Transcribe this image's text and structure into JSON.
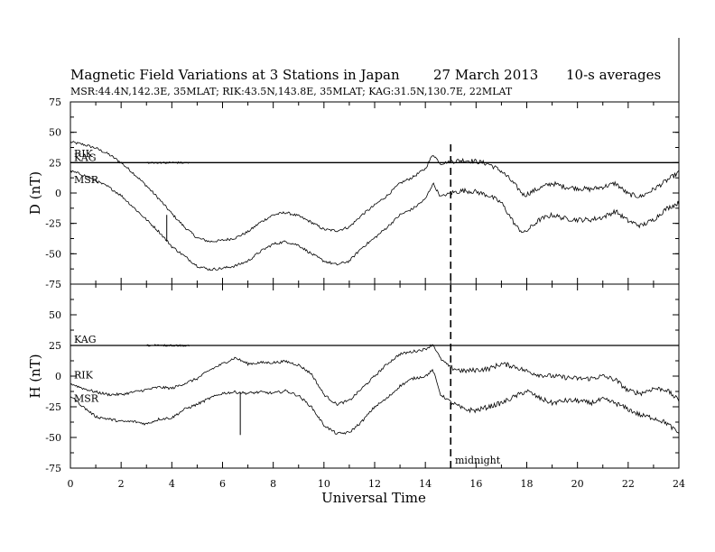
{
  "title": "Magnetic Field Variations at 3 Stations in Japan",
  "date": "27 March   2013",
  "averaging": "10-s averages",
  "subtitle": "MSR:44.4N,142.3E, 35MLAT;   RIK:43.5N,143.8E, 35MLAT;   KAG:31.5N,130.7E, 22MLAT",
  "chart_data": {
    "type": "line",
    "xlabel": "Universal Time",
    "xlim": [
      0,
      24
    ],
    "xticks": [
      0,
      2,
      4,
      6,
      8,
      10,
      12,
      14,
      16,
      18,
      20,
      22,
      24
    ],
    "grid": false,
    "annotation": {
      "x": 15,
      "label": "midnight",
      "style": "dashed"
    },
    "panels": [
      {
        "ylabel": "D (nT)",
        "ylim": [
          -75,
          75
        ],
        "yticks": [
          75,
          50,
          25,
          0,
          -25,
          -50,
          -75
        ],
        "series": [
          {
            "name": "RIK",
            "x": [
              0,
              0.5,
              1,
              1.5,
              2,
              2.5,
              3,
              3.5,
              4,
              4.5,
              5,
              5.5,
              6,
              6.5,
              7,
              7.5,
              8,
              8.5,
              9,
              9.5,
              10,
              10.5,
              11,
              11.5,
              12,
              12.5,
              13,
              13.5,
              14,
              14.3,
              14.6,
              15,
              15.5,
              16,
              16.5,
              17,
              17.3,
              17.6,
              17.9,
              18.5,
              19,
              19.5,
              20,
              20.5,
              21,
              21.5,
              22,
              22.5,
              23,
              23.5,
              24
            ],
            "y": [
              42,
              40,
              37,
              32,
              25,
              16,
              6,
              -5,
              -17,
              -28,
              -37,
              -40,
              -39,
              -37,
              -32,
              -24,
              -18,
              -16,
              -19,
              -24,
              -30,
              -31,
              -28,
              -18,
              -10,
              -2,
              8,
              13,
              20,
              32,
              24,
              26,
              27,
              26,
              24,
              18,
              12,
              5,
              -2,
              4,
              8,
              5,
              4,
              3,
              5,
              8,
              -1,
              -3,
              3,
              10,
              17
            ]
          },
          {
            "name": "KAG",
            "x": [
              0,
              24
            ],
            "y": [
              25,
              25
            ]
          },
          {
            "name": "MSR",
            "x": [
              0,
              0.5,
              1,
              1.5,
              2,
              2.5,
              3,
              3.5,
              4,
              4.5,
              5,
              5.5,
              6,
              6.5,
              7,
              7.5,
              8,
              8.5,
              9,
              9.5,
              10,
              10.5,
              11,
              11.5,
              12,
              12.5,
              13,
              13.5,
              14,
              14.3,
              14.6,
              15,
              15.5,
              16,
              16.5,
              17,
              17.3,
              17.6,
              17.9,
              18.5,
              19,
              19.5,
              20,
              20.5,
              21,
              21.5,
              22,
              22.5,
              23,
              23.5,
              24
            ],
            "y": [
              18,
              15,
              10,
              5,
              -2,
              -12,
              -22,
              -32,
              -44,
              -52,
              -60,
              -63,
              -62,
              -60,
              -56,
              -48,
              -42,
              -40,
              -43,
              -50,
              -56,
              -59,
              -56,
              -45,
              -37,
              -28,
              -18,
              -13,
              -5,
              8,
              -3,
              0,
              2,
              1,
              -2,
              -8,
              -18,
              -28,
              -33,
              -22,
              -18,
              -21,
              -22,
              -22,
              -20,
              -15,
              -23,
              -27,
              -22,
              -13,
              -8
            ]
          }
        ]
      },
      {
        "ylabel": "H (nT)",
        "ylim": [
          -75,
          75
        ],
        "yticks": [
          75,
          50,
          25,
          0,
          -25,
          -50,
          -75
        ],
        "series": [
          {
            "name": "KAG",
            "x": [
              0,
              24
            ],
            "y": [
              25,
              25
            ]
          },
          {
            "name": "RIK",
            "x": [
              0,
              0.5,
              1,
              1.5,
              2,
              2.5,
              3,
              3.5,
              4,
              4.5,
              5,
              5.5,
              6,
              6.5,
              7,
              7.5,
              8,
              8.5,
              9,
              9.5,
              10,
              10.5,
              11,
              11.5,
              12,
              12.5,
              13,
              13.5,
              14,
              14.3,
              14.6,
              15,
              15.5,
              16,
              16.5,
              17,
              17.5,
              18,
              18.5,
              19,
              19.5,
              20,
              20.5,
              21,
              21.5,
              22,
              22.5,
              23,
              23.5,
              24
            ],
            "y": [
              -6,
              -10,
              -13,
              -15,
              -15,
              -13,
              -11,
              -9,
              -10,
              -6,
              -2,
              5,
              10,
              15,
              10,
              11,
              11,
              12,
              9,
              2,
              -15,
              -23,
              -20,
              -10,
              0,
              10,
              18,
              20,
              22,
              26,
              14,
              7,
              4,
              5,
              6,
              10,
              8,
              4,
              1,
              0,
              -1,
              -2,
              -2,
              0,
              -3,
              -12,
              -14,
              -10,
              -11,
              -20
            ]
          },
          {
            "name": "MSR",
            "x": [
              0,
              0.5,
              1,
              1.5,
              2,
              2.5,
              3,
              3.5,
              4,
              4.5,
              5,
              5.5,
              6,
              6.5,
              7,
              7.5,
              8,
              8.5,
              9,
              9.5,
              10,
              10.5,
              11,
              11.5,
              12,
              12.5,
              13,
              13.5,
              14,
              14.3,
              14.6,
              15,
              15.5,
              16,
              16.5,
              17,
              17.5,
              18,
              18.5,
              19,
              19.5,
              20,
              20.5,
              21,
              21.5,
              22,
              22.5,
              23,
              23.5,
              24
            ],
            "y": [
              -16,
              -25,
              -33,
              -35,
              -37,
              -37,
              -39,
              -35,
              -34,
              -27,
              -23,
              -18,
              -14,
              -13,
              -14,
              -13,
              -14,
              -12,
              -16,
              -25,
              -40,
              -47,
              -46,
              -37,
              -25,
              -18,
              -8,
              -2,
              0,
              5,
              -15,
              -21,
              -27,
              -28,
              -25,
              -22,
              -17,
              -12,
              -18,
              -22,
              -20,
              -20,
              -22,
              -19,
              -22,
              -27,
              -32,
              -34,
              -38,
              -47
            ]
          }
        ]
      }
    ]
  }
}
